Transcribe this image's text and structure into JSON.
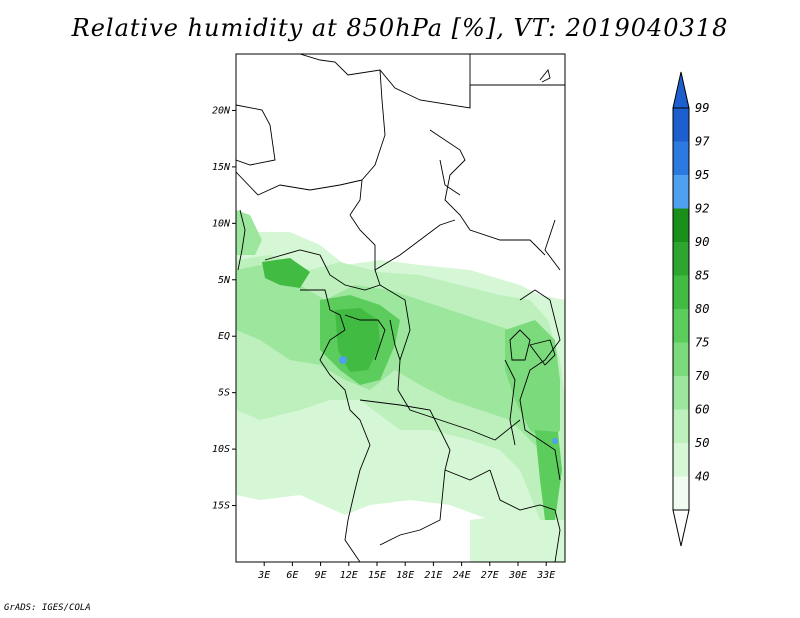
{
  "title": "Relative humidity at 850hPa [%], VT: 2019040318",
  "footer": "GrADS: IGES/COLA",
  "map": {
    "lat_labels": [
      "20N",
      "15N",
      "10N",
      "5N",
      "EQ",
      "5S",
      "10S",
      "15S"
    ],
    "lon_labels": [
      "3E",
      "6E",
      "9E",
      "12E",
      "15E",
      "18E",
      "21E",
      "24E",
      "27E",
      "30E",
      "33E"
    ],
    "lat_values": [
      20,
      15,
      10,
      5,
      0,
      -5,
      -10,
      -15
    ],
    "lon_values": [
      3,
      6,
      9,
      12,
      15,
      18,
      21,
      24,
      27,
      30,
      33
    ],
    "lon_range": [
      0,
      35
    ],
    "lat_range": [
      -20,
      25
    ]
  },
  "colorbar": {
    "labels": [
      "99",
      "97",
      "95",
      "92",
      "90",
      "85",
      "80",
      "75",
      "70",
      "60",
      "50",
      "40"
    ],
    "colors": [
      "#1e5fd0",
      "#2c7ae0",
      "#4fa0ee",
      "#1a8f1a",
      "#2ea52e",
      "#42bb42",
      "#5ccd5c",
      "#7bda7b",
      "#9de69d",
      "#bdf0bd",
      "#d6f7d6",
      "#effcef"
    ]
  }
}
